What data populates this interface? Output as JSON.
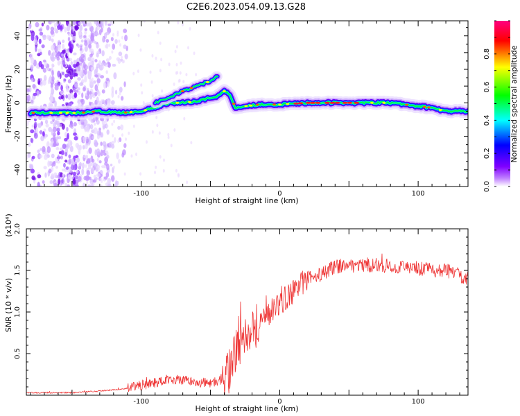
{
  "title": "C2E6.2023.054.09.13.G28",
  "chart_data": [
    {
      "type": "heatmap",
      "xlabel": "Height of straight line (km)",
      "ylabel": "Frequency (Hz)",
      "xlim": [
        -183,
        136
      ],
      "ylim": [
        -50,
        49
      ],
      "x_ticks": [
        -100,
        0,
        100
      ],
      "y_ticks": [
        -40,
        -20,
        0,
        20,
        40
      ],
      "colorbar": {
        "label": "Normalized spectral amplitude",
        "range": [
          0,
          1
        ],
        "ticks": [
          "0.0",
          "0.2",
          "0.4",
          "0.6",
          "0.8"
        ],
        "colors": [
          "#ffffff",
          "#8000ff",
          "#0000ff",
          "#00ffff",
          "#00ff00",
          "#ffff00",
          "#ff0000",
          "#ff0080"
        ]
      },
      "ridges": [
        {
          "x": [
            -180,
            -145,
            -130,
            -115,
            -100,
            -90,
            -80,
            -70,
            -60,
            -50,
            -45,
            -40,
            -36,
            -32,
            -25,
            -15,
            0,
            20,
            50,
            80,
            100,
            110,
            120,
            136
          ],
          "y": [
            -6,
            -6,
            -5,
            -6,
            -5,
            -3,
            0,
            0,
            1,
            3,
            4,
            7,
            5,
            -3,
            -2,
            -1,
            -1,
            0,
            0,
            0,
            -2,
            -3,
            -5,
            -5
          ]
        },
        {
          "x": [
            -90,
            -80,
            -70,
            -60,
            -50,
            -45
          ],
          "y": [
            0,
            3,
            7,
            10,
            13,
            16
          ]
        }
      ]
    },
    {
      "type": "line",
      "xlabel": "Height of straight line (km)",
      "ylabel": "SNR (10 * v/v)",
      "y_multiplier": "(x10⁴)",
      "xlim": [
        -183,
        136
      ],
      "ylim": [
        0,
        2.0
      ],
      "x_ticks": [
        -100,
        0,
        100
      ],
      "y_ticks": [
        "0.5",
        "1.0",
        "1.5",
        "2.0"
      ],
      "color": "#ee3333",
      "envelope": {
        "x": [
          -183,
          -150,
          -130,
          -110,
          -100,
          -90,
          -80,
          -70,
          -60,
          -50,
          -40,
          -35,
          -30,
          -25,
          -20,
          -10,
          0,
          10,
          20,
          30,
          40,
          60,
          80,
          100,
          110,
          120,
          130,
          136
        ],
        "y": [
          0.03,
          0.03,
          0.05,
          0.08,
          0.12,
          0.15,
          0.2,
          0.18,
          0.15,
          0.15,
          0.18,
          0.35,
          0.6,
          0.75,
          0.8,
          0.95,
          1.1,
          1.25,
          1.4,
          1.45,
          1.55,
          1.57,
          1.55,
          1.52,
          1.5,
          1.5,
          1.45,
          1.4
        ]
      }
    }
  ]
}
